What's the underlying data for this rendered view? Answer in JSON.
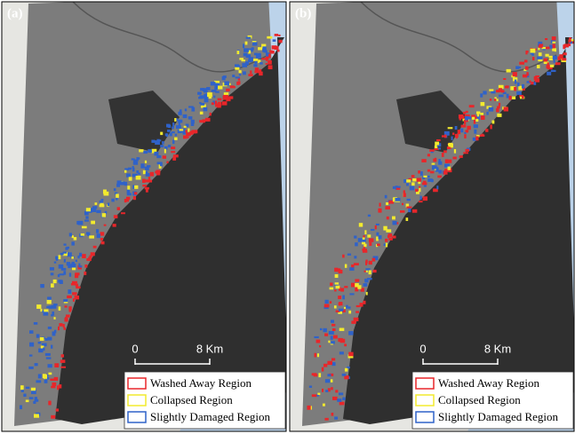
{
  "panels": [
    {
      "label": "(a)",
      "scale_bar": {
        "start": "0",
        "end": "8 Km"
      },
      "legend": [
        {
          "label": "Washed Away Region",
          "color": "#e8262a"
        },
        {
          "label": "Collapsed Region",
          "color": "#f2ea2e"
        },
        {
          "label": "Slightly Damaged Region",
          "color": "#2f62c9"
        }
      ]
    },
    {
      "label": "(b)",
      "scale_bar": {
        "start": "0",
        "end": "8 Km"
      },
      "legend": [
        {
          "label": "Washed Away Region",
          "color": "#e8262a"
        },
        {
          "label": "Collapsed Region",
          "color": "#f2ea2e"
        },
        {
          "label": "Slightly Damaged Region",
          "color": "#2f62c9"
        }
      ]
    }
  ]
}
